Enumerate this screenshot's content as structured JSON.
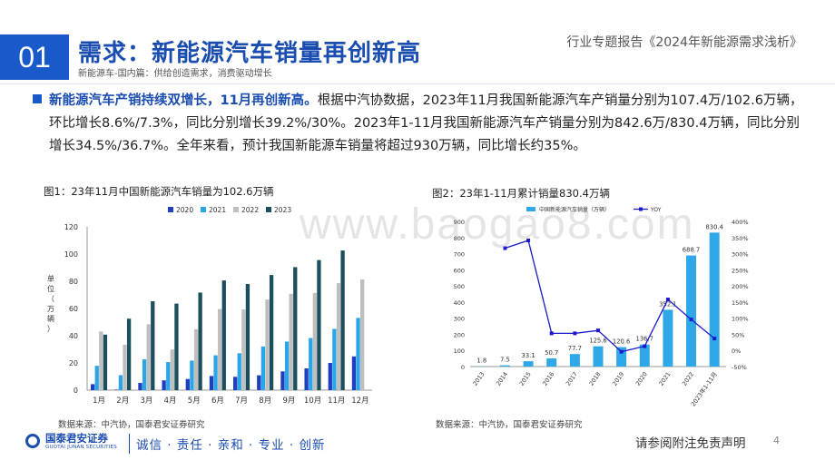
{
  "header": {
    "section_number": "01",
    "title": "需求：新能源汽车销量再创新高",
    "subtitle": "新能源车-国内篇：供给创造需求，消费驱动增长",
    "report_name": "行业专题报告《2024年新能源需求浅析》"
  },
  "paragraph": {
    "highlight": "新能源汽车产销持续双增长，11月再创新高。",
    "body": "根据中汽协数据，2023年11月我国新能源汽车产销量分别为107.4万/102.6万辆，环比增长8.6%/7.3%，同比分别增长39.2%/30%。2023年1-11月我国新能源汽车产销量分别为842.6万/830.4万辆，同比分别增长34.5%/36.7%。全年来看，预计我国新能源车销量将超过930万辆，同比增长约35%。"
  },
  "figure1": {
    "caption": "图1：23年11月中国新能源汽车销量为102.6万辆",
    "source": "数据来源：中汽协，国泰君安证券研究"
  },
  "figure2": {
    "caption": "图2：23年1-11月累计销量830.4万辆",
    "source": "数据来源：中汽协，国泰君安证券研究"
  },
  "footer": {
    "logo_name": "国泰君安证券",
    "logo_en": "GUOTAI JUNAN SECURITIES",
    "slogan": "诚信 · 责任 · 亲和 · 专业 · 创新",
    "disclaimer": "请参阅附注免责声明",
    "page": "4"
  },
  "watermark": "www.baogao8.com",
  "colors": {
    "brand_blue": "#1a59c9",
    "s2020": "#1f3fbf",
    "s2021": "#2aa6e8",
    "s2022": "#bfbfbf",
    "s2023": "#1b4f5e",
    "bar2": "#2ea8e6",
    "yoy": "#1a1acc"
  },
  "chart_data": [
    {
      "type": "bar",
      "ylabel": "单位（万辆）",
      "ylim": [
        0,
        120
      ],
      "yticks": [
        0,
        20,
        40,
        60,
        80,
        100,
        120
      ],
      "legend_position": "top-right",
      "categories": [
        "1月",
        "2月",
        "3月",
        "4月",
        "5月",
        "6月",
        "7月",
        "8月",
        "9月",
        "10月",
        "11月",
        "12月"
      ],
      "series": [
        {
          "name": "2020",
          "values": [
            4.4,
            0.4,
            5.3,
            7.2,
            8.2,
            10.4,
            9.8,
            10.9,
            13.8,
            16.0,
            20.0,
            24.8
          ]
        },
        {
          "name": "2021",
          "values": [
            17.9,
            11.0,
            22.6,
            20.6,
            21.7,
            25.6,
            27.1,
            32.1,
            35.7,
            38.3,
            45.0,
            53.1
          ]
        },
        {
          "name": "2022",
          "values": [
            43.1,
            33.4,
            48.4,
            29.9,
            44.7,
            59.6,
            59.3,
            66.6,
            70.8,
            71.4,
            78.6,
            81.4
          ]
        },
        {
          "name": "2023",
          "values": [
            40.8,
            52.5,
            65.3,
            63.6,
            71.7,
            80.6,
            78.0,
            84.6,
            90.4,
            95.6,
            102.6,
            null
          ]
        }
      ]
    },
    {
      "type": "bar",
      "categories": [
        "2013",
        "2014",
        "2015",
        "2016",
        "2017",
        "2018",
        "2019",
        "2020",
        "2021",
        "2022",
        "2023年1-11月"
      ],
      "series": [
        {
          "name": "中国新能源汽车销量（万辆）",
          "axis": "left",
          "values": [
            1.8,
            7.5,
            33.1,
            50.7,
            77.7,
            125.6,
            120.6,
            136.7,
            352.1,
            688.7,
            830.4
          ],
          "data_labels": [
            "1.8",
            "7.5",
            "33.1",
            "50.7",
            "77.7",
            "125.6",
            "120.6",
            "136.7",
            "352.1",
            "688.7",
            "830.4"
          ]
        },
        {
          "name": "YOY",
          "type": "line",
          "axis": "right",
          "values": [
            null,
            317,
            341,
            53,
            53,
            62,
            -4,
            13,
            158,
            96,
            37
          ]
        }
      ],
      "ylim": [
        0,
        900
      ],
      "yticks": [
        0,
        100,
        200,
        300,
        400,
        500,
        600,
        700,
        800,
        900
      ],
      "y2lim": [
        -50,
        400
      ],
      "y2ticks": [
        "-50%",
        "0%",
        "50%",
        "100%",
        "150%",
        "200%",
        "250%",
        "300%",
        "350%",
        "400%"
      ],
      "legend_position": "top"
    }
  ]
}
